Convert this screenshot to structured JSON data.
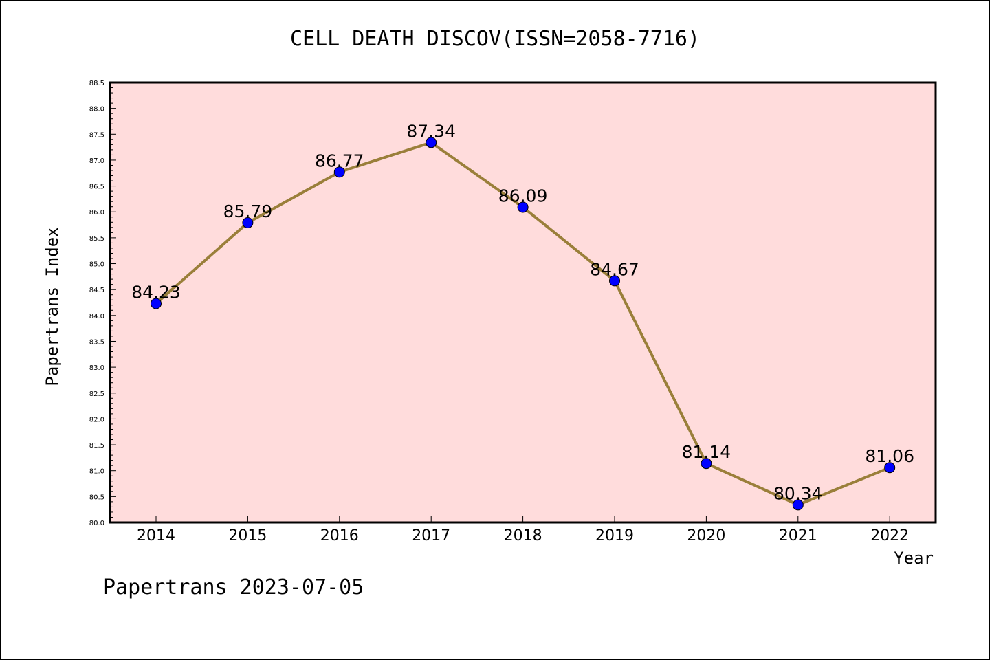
{
  "chart_data": {
    "type": "line",
    "title": "CELL DEATH DISCOV(ISSN=2058-7716)",
    "xlabel": "Year",
    "ylabel": "Papertrans Index",
    "categories": [
      "2014",
      "2015",
      "2016",
      "2017",
      "2018",
      "2019",
      "2020",
      "2021",
      "2022"
    ],
    "series": [
      {
        "values": [
          84.23,
          85.79,
          86.77,
          87.34,
          86.09,
          84.67,
          81.14,
          80.34,
          81.06
        ],
        "labels": [
          "84.23",
          "85.79",
          "86.77",
          "87.34",
          "86.09",
          "84.67",
          "81.14",
          "80.34",
          "81.06"
        ]
      }
    ],
    "ylim": [
      80.0,
      88.5
    ],
    "yticks": [
      "80.0",
      "80.5",
      "81.0",
      "81.5",
      "82.0",
      "82.5",
      "83.0",
      "83.5",
      "84.0",
      "84.5",
      "85.0",
      "85.5",
      "86.0",
      "86.5",
      "87.0",
      "87.5",
      "88.0",
      "88.5"
    ],
    "grid": false,
    "colors": {
      "line": "#9a7f3a",
      "marker": "#0000ff",
      "plot_background": "#ffdcdc"
    }
  },
  "footer": "Papertrans 2023-07-05"
}
